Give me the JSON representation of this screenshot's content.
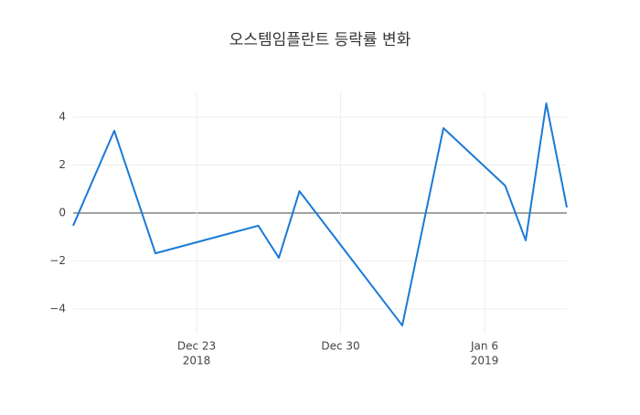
{
  "chart_data": {
    "type": "line",
    "title": "오스템임플란트 등락률 변화",
    "x": [
      "2018-12-17",
      "2018-12-19",
      "2018-12-21",
      "2018-12-26",
      "2018-12-27",
      "2018-12-28",
      "2019-01-02",
      "2019-01-04",
      "2019-01-07",
      "2019-01-08",
      "2019-01-09",
      "2019-01-10"
    ],
    "values": [
      -0.53,
      3.43,
      -1.68,
      -0.53,
      -1.87,
      0.91,
      -4.69,
      3.54,
      1.14,
      -1.14,
      4.57,
      0.23
    ],
    "color": "#1a7ad6",
    "xlim": [
      "2018-12-17",
      "2019-01-10"
    ],
    "xticks": [
      {
        "value": "2018-12-23",
        "label": "Dec 23",
        "sublabel": "2018"
      },
      {
        "value": "2018-12-30",
        "label": "Dec 30"
      },
      {
        "value": "2019-01-06",
        "label": "Jan 6",
        "sublabel": "2019"
      }
    ],
    "ylim": [
      -5.03,
      5.07
    ],
    "yticks": [
      {
        "value": -4,
        "label": "−4"
      },
      {
        "value": -2,
        "label": "−2"
      },
      0,
      2,
      4
    ],
    "grid": true
  }
}
